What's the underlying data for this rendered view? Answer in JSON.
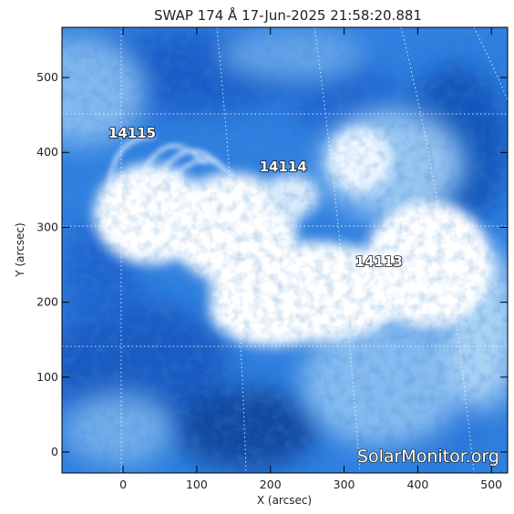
{
  "title": "SWAP 174 Å 17-Jun-2025 21:58:20.881",
  "x_axis": {
    "label": "X (arcsec)",
    "ticks": [
      "0",
      "100",
      "200",
      "300",
      "400",
      "500"
    ],
    "range": [
      -83,
      522
    ]
  },
  "y_axis": {
    "label": "Y (arcsec)",
    "ticks": [
      "0",
      "100",
      "200",
      "300",
      "400",
      "500"
    ],
    "range": [
      -28,
      567
    ]
  },
  "active_regions": [
    {
      "id": "14115",
      "x": -20,
      "y": 420
    },
    {
      "id": "14114",
      "x": 185,
      "y": 375
    },
    {
      "id": "14113",
      "x": 315,
      "y": 248
    }
  ],
  "watermark": "SolarMonitor.org",
  "colors": {
    "deep": "#0b3f8c",
    "mid": "#1e6fd6",
    "light": "#7fb4ec",
    "bright": "#ffffff",
    "frame": "#000000"
  }
}
